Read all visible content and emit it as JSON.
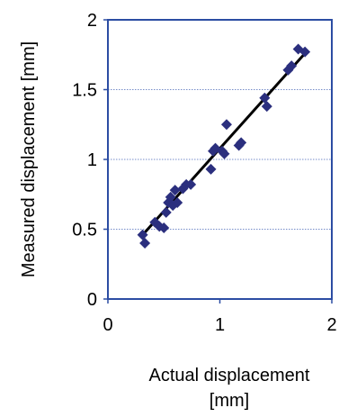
{
  "chart_data": {
    "type": "scatter",
    "xlabel_lines": [
      "Actual displacement",
      "[mm]"
    ],
    "ylabel": "Measured displacement [mm]",
    "xlim": [
      0,
      2
    ],
    "ylim": [
      0,
      2
    ],
    "x_ticks": [
      0,
      1,
      2
    ],
    "x_tick_labels": [
      "0",
      "1",
      "2"
    ],
    "y_ticks": [
      0,
      0.5,
      1,
      1.5,
      2
    ],
    "y_tick_labels": [
      "0",
      "0.5",
      "1",
      "1.5",
      "2"
    ],
    "grid": true,
    "colors": {
      "marker": "#2b2f7e",
      "fit_line": "#000000",
      "frame": "#2c4da3",
      "grid": "#4a68b8"
    },
    "series": [
      {
        "points": [
          [
            0.31,
            0.46
          ],
          [
            0.33,
            0.4
          ],
          [
            0.42,
            0.55
          ],
          [
            0.46,
            0.52
          ],
          [
            0.5,
            0.51
          ],
          [
            0.52,
            0.62
          ],
          [
            0.54,
            0.69
          ],
          [
            0.56,
            0.73
          ],
          [
            0.58,
            0.67
          ],
          [
            0.6,
            0.78
          ],
          [
            0.62,
            0.69
          ],
          [
            0.67,
            0.79
          ],
          [
            0.7,
            0.82
          ],
          [
            0.74,
            0.82
          ],
          [
            0.92,
            0.93
          ],
          [
            0.94,
            1.06
          ],
          [
            0.96,
            1.08
          ],
          [
            1.02,
            1.06
          ],
          [
            1.04,
            1.04
          ],
          [
            1.06,
            1.25
          ],
          [
            1.17,
            1.1
          ],
          [
            1.19,
            1.12
          ],
          [
            1.4,
            1.44
          ],
          [
            1.42,
            1.38
          ],
          [
            1.61,
            1.64
          ],
          [
            1.64,
            1.67
          ],
          [
            1.7,
            1.79
          ],
          [
            1.76,
            1.77
          ]
        ]
      }
    ],
    "fit_line": {
      "x": [
        0.3,
        1.76
      ],
      "y": [
        0.45,
        1.76
      ]
    }
  }
}
